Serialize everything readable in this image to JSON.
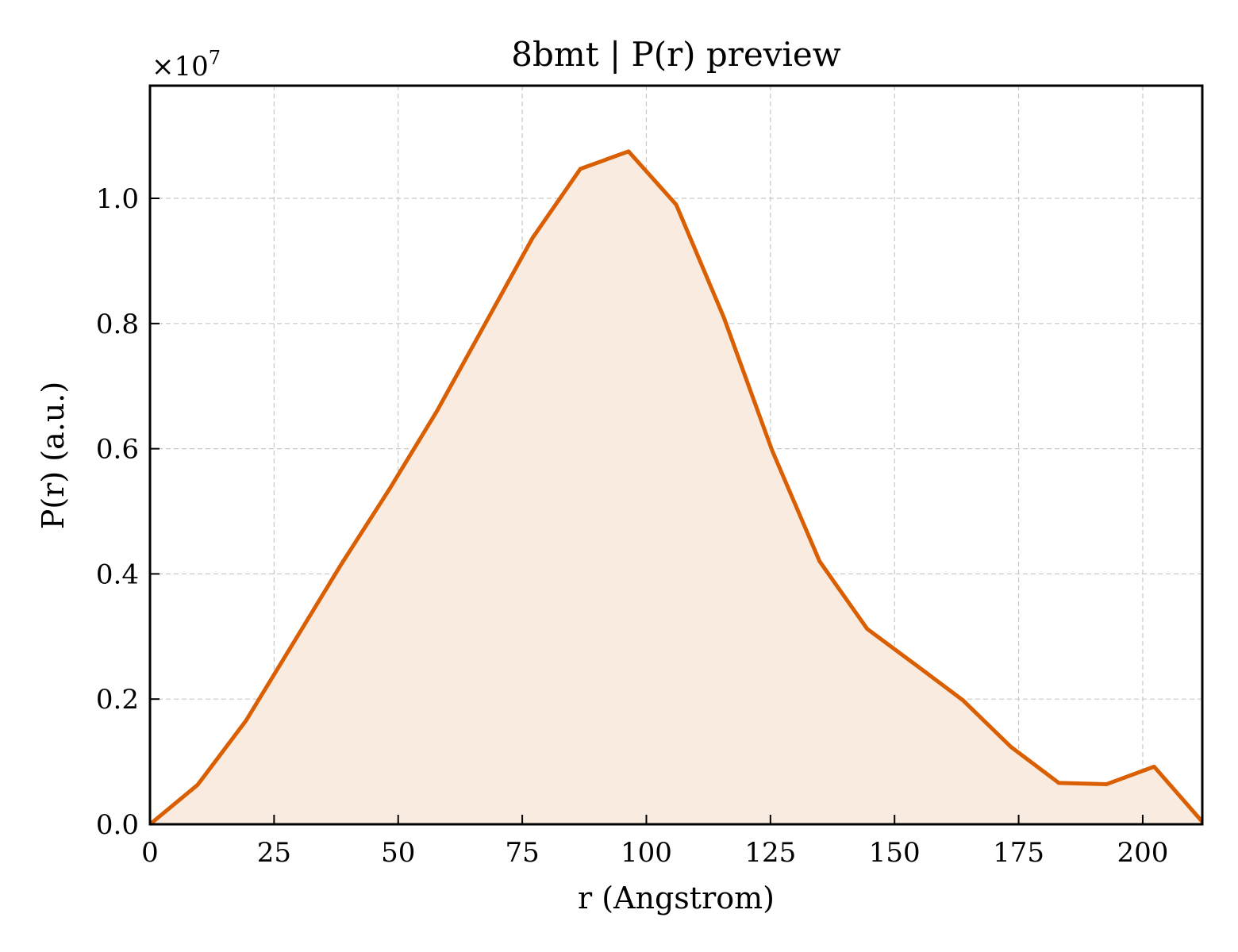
{
  "chart_data": {
    "type": "area",
    "title": "8bmt | P(r) preview",
    "xlabel": "r (Angstrom)",
    "ylabel": "P(r) (a.u.)",
    "y_offset_label": "×10",
    "y_offset_exponent": "7",
    "xlim": [
      0,
      212
    ],
    "ylim": [
      0,
      1.18
    ],
    "grid": true,
    "legend": "none",
    "line_color": "#d95f02",
    "fill_color": "#f9ebe0",
    "x_ticks": [
      {
        "value": 0,
        "label": "0"
      },
      {
        "value": 25,
        "label": "25"
      },
      {
        "value": 50,
        "label": "50"
      },
      {
        "value": 75,
        "label": "75"
      },
      {
        "value": 100,
        "label": "100"
      },
      {
        "value": 125,
        "label": "125"
      },
      {
        "value": 150,
        "label": "150"
      },
      {
        "value": 175,
        "label": "175"
      },
      {
        "value": 200,
        "label": "200"
      }
    ],
    "y_ticks": [
      {
        "value": 0.0,
        "label": "0.0"
      },
      {
        "value": 0.2,
        "label": "0.2"
      },
      {
        "value": 0.4,
        "label": "0.4"
      },
      {
        "value": 0.6,
        "label": "0.6"
      },
      {
        "value": 0.8,
        "label": "0.8"
      },
      {
        "value": 1.0,
        "label": "1.0"
      }
    ],
    "x": [
      0,
      9.6,
      19.3,
      28.9,
      38.5,
      48.2,
      57.8,
      67.4,
      77.1,
      86.7,
      96.4,
      106.0,
      115.6,
      125.3,
      134.9,
      144.5,
      154.2,
      163.8,
      173.4,
      183.1,
      192.7,
      202.3,
      212.0
    ],
    "y": [
      0.0,
      0.063,
      0.165,
      0.29,
      0.415,
      0.535,
      0.66,
      0.798,
      0.937,
      1.047,
      1.075,
      0.99,
      0.81,
      0.598,
      0.42,
      0.312,
      0.255,
      0.198,
      0.124,
      0.066,
      0.064,
      0.092,
      0.004
    ]
  }
}
